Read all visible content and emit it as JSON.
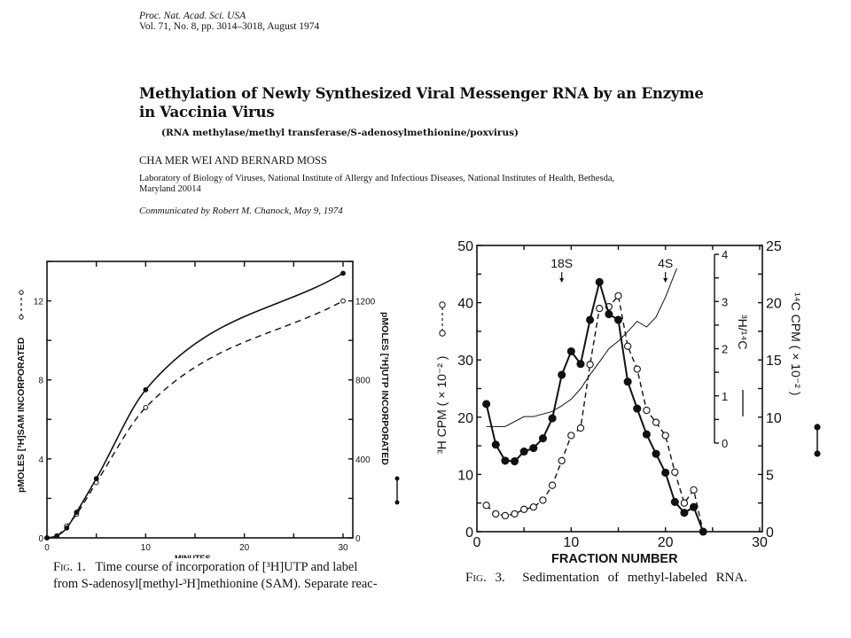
{
  "header": {
    "journal": "Proc. Nat. Acad. Sci. USA",
    "volume_line": "Vol. 71, No. 8, pp. 3014–3018, August 1974",
    "title_line1": "Methylation of Newly Synthesized Viral Messenger RNA by an Enzyme",
    "title_line2": "in Vaccinia Virus",
    "keywords": "(RNA methylase/methyl transferase/S-adenosylmethionine/poxvirus)",
    "authors": "CHA MER WEI AND BERNARD MOSS",
    "affiliation_line1": "Laboratory of Biology of Viruses, National Institute of Allergy and Infectious Diseases, National Institutes of Health, Bethesda,",
    "affiliation_line2": "Maryland 20014",
    "communicated": "Communicated by Robert M. Chanock, May 9, 1974"
  },
  "captions": {
    "fig1_label": "Fig. 1.",
    "fig1_line1": "Time course of incorporation of [³H]UTP and label",
    "fig1_line2": "from S-adenosyl[methyl-³H]methionine (SAM). Separate reac-",
    "fig3_label": "Fig. 3.",
    "fig3_text": "Sedimentation of methyl-labeled RNA."
  },
  "chart_data": [
    {
      "type": "line",
      "figure": "Fig. 1",
      "xlabel": "MINUTES",
      "ylabel": "pMOLES [³H]SAM INCORPORATED",
      "ylabel_right": "pMOLES [³H]UTP INCORPORATED",
      "xlim": [
        0,
        30
      ],
      "ylim": [
        0,
        14
      ],
      "ylim_right": [
        0,
        1400
      ],
      "xticks": [
        0,
        10,
        20,
        30
      ],
      "yticks": [
        0,
        4,
        8,
        12
      ],
      "yticks_right": [
        0,
        400,
        800,
        1200
      ],
      "grid": false,
      "series": [
        {
          "axis": "left",
          "style": "dashed, open circles",
          "x": [
            0,
            1,
            2,
            3,
            5,
            10,
            30
          ],
          "y": [
            0,
            0.1,
            0.6,
            1.2,
            2.8,
            6.6,
            12.0
          ]
        },
        {
          "axis": "right",
          "style": "solid, filled circles",
          "x": [
            0,
            1,
            2,
            3,
            5,
            10,
            30
          ],
          "y": [
            0,
            10,
            50,
            130,
            300,
            750,
            1340
          ]
        }
      ]
    },
    {
      "type": "line",
      "figure": "Fig. 3",
      "xlabel": "FRACTION NUMBER",
      "ylabel": "³H CPM ( × 10⁻² )",
      "ylabel_right": "¹⁴C CPM ( × 10⁻² )",
      "ylabel_ratio": "³H/¹⁴C",
      "xlim": [
        0,
        30
      ],
      "ylim": [
        0,
        50
      ],
      "ylim_right": [
        0,
        25
      ],
      "ylim_ratio": [
        0,
        4
      ],
      "xticks": [
        0,
        10,
        20,
        30
      ],
      "yticks": [
        0,
        10,
        20,
        30,
        40,
        50
      ],
      "yticks_right": [
        0,
        5,
        10,
        15,
        20,
        25
      ],
      "yticks_ratio": [
        0,
        1,
        2,
        3,
        4
      ],
      "grid": false,
      "annotations": [
        {
          "label": "18S",
          "x": 9
        },
        {
          "label": "4S",
          "x": 20
        }
      ],
      "series": [
        {
          "axis": "left",
          "style": "dashed, open circles",
          "x": [
            1,
            2,
            3,
            4,
            5,
            6,
            7,
            8,
            9,
            10,
            11,
            12,
            13,
            14,
            15,
            16,
            17,
            18,
            19,
            20,
            21,
            22,
            23,
            24
          ],
          "y": [
            4.6,
            3.1,
            2.8,
            3.1,
            3.9,
            4.3,
            5.5,
            8.1,
            12.4,
            16.8,
            18.1,
            29.2,
            39.0,
            39.3,
            41.2,
            32.4,
            28.4,
            21.2,
            19.1,
            16.8,
            10.4,
            5.0,
            7.3,
            0
          ]
        },
        {
          "axis": "right",
          "style": "solid, filled circles",
          "x": [
            1,
            2,
            3,
            4,
            5,
            6,
            7,
            8,
            9,
            10,
            11,
            12,
            13,
            14,
            15,
            16,
            17,
            18,
            19,
            20,
            21,
            22,
            23,
            24
          ],
          "y": [
            11.15,
            7.6,
            6.2,
            6.15,
            7.0,
            7.3,
            8.15,
            9.9,
            13.7,
            15.75,
            14.65,
            18.5,
            21.8,
            19.0,
            18.5,
            13.1,
            10.75,
            8.5,
            6.8,
            5.15,
            2.6,
            1.65,
            2.15,
            0
          ]
        },
        {
          "axis": "ratio",
          "style": "thin solid line",
          "x": [
            1,
            3,
            5,
            6,
            8,
            9,
            10,
            11,
            12,
            13,
            14,
            15,
            16,
            17,
            18,
            19,
            20,
            21.2
          ],
          "y": [
            0.35,
            0.35,
            0.56,
            0.56,
            0.67,
            0.79,
            0.93,
            1.15,
            1.45,
            1.72,
            2.0,
            2.16,
            2.36,
            2.58,
            2.46,
            2.67,
            3.09,
            3.7
          ]
        }
      ]
    }
  ]
}
